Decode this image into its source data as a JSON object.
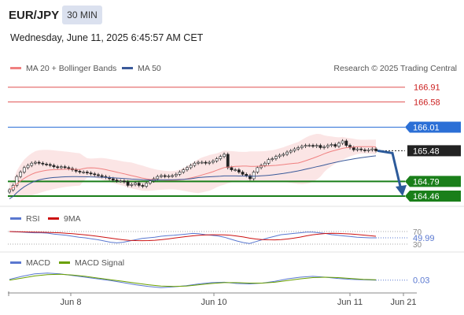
{
  "header": {
    "pair": "EUR/JPY",
    "timeframe": "30 MIN",
    "datetime": "Wednesday, June 11, 2025 6:45:57 AM CET"
  },
  "legend": {
    "ma20_label": "MA 20 + Bollinger Bands",
    "ma50_label": "MA 50",
    "credit": "Research © 2025 Trading Central",
    "rsi_label": "RSI",
    "rsi_ma_label": "9MA",
    "macd_label": "MACD",
    "macd_signal_label": "MACD Signal"
  },
  "colors": {
    "ma20": "#f08080",
    "ma50": "#3b5a9a",
    "resistance": "#e05050",
    "support": "#1a7f1a",
    "pivot": "#2b6fd6",
    "rsi": "#5a78d0",
    "rsi_ma": "#cc1111",
    "macd": "#5a78d0",
    "macd_signal": "#6aa000",
    "arrow": "#2c5a9a"
  },
  "chart_data": [
    {
      "type": "candlestick",
      "x_labels": [
        "Jun 8",
        "Jun 10",
        "Jun 11",
        "Jun 21"
      ],
      "ylim": [
        164.3,
        167.1
      ],
      "levels": [
        {
          "value": 166.91,
          "label": "166.91",
          "kind": "resistance"
        },
        {
          "value": 166.58,
          "label": "166.58",
          "kind": "resistance"
        },
        {
          "value": 166.01,
          "label": "166.01",
          "kind": "pivot"
        },
        {
          "value": 164.79,
          "label": "164.79",
          "kind": "support"
        },
        {
          "value": 164.46,
          "label": "164.46",
          "kind": "support"
        }
      ],
      "last_price": {
        "value": 165.48,
        "label": "165.48"
      },
      "close": [
        164.6,
        164.7,
        164.9,
        165.0,
        165.1,
        165.15,
        165.2,
        165.22,
        165.2,
        165.18,
        165.17,
        165.15,
        165.12,
        165.1,
        165.12,
        165.1,
        165.08,
        165.05,
        165.02,
        165.0,
        165.0,
        164.98,
        164.96,
        164.94,
        164.92,
        164.9,
        164.88,
        164.85,
        164.82,
        164.8,
        164.8,
        164.78,
        164.7,
        164.72,
        164.75,
        164.7,
        164.68,
        164.75,
        164.8,
        164.85,
        164.9,
        164.92,
        164.9,
        164.91,
        164.92,
        164.95,
        165.0,
        165.05,
        165.1,
        165.15,
        165.2,
        165.22,
        165.22,
        165.2,
        165.22,
        165.25,
        165.3,
        165.35,
        165.4,
        165.1,
        165.05,
        165.05,
        165.0,
        164.95,
        164.92,
        164.85,
        165.0,
        165.1,
        165.15,
        165.2,
        165.28,
        165.3,
        165.35,
        165.38,
        165.4,
        165.45,
        165.48,
        165.52,
        165.55,
        165.58,
        165.6,
        165.6,
        165.58,
        165.6,
        165.55,
        165.57,
        165.6,
        165.62,
        165.58,
        165.65,
        165.7,
        165.6,
        165.55,
        165.5,
        165.52,
        165.5,
        165.48,
        165.5,
        165.52,
        165.48
      ],
      "ma20_approx": [
        164.4,
        164.7,
        164.9,
        165.0,
        165.05,
        165.0,
        164.95,
        164.9,
        164.85,
        164.9,
        165.0,
        165.1,
        165.2,
        165.3,
        165.45,
        165.5,
        165.55,
        165.5,
        165.5
      ],
      "ma50_approx": [
        164.4,
        164.55,
        164.7,
        164.8,
        164.85,
        164.9,
        164.95,
        165.0,
        165.05,
        165.1,
        165.15,
        165.25,
        165.3,
        165.38,
        165.42
      ]
    },
    {
      "type": "line",
      "name": "RSI",
      "levels": [
        70,
        30
      ],
      "last_value": {
        "value": 49.99,
        "label": "49.99"
      },
      "level_labels": [
        "70",
        "30"
      ],
      "values": [
        70,
        69,
        68,
        67,
        66,
        66,
        65,
        62,
        60,
        58,
        55,
        52,
        50,
        47,
        44,
        40,
        36,
        34,
        36,
        40,
        44,
        48,
        50,
        52,
        55,
        57,
        58,
        60,
        62,
        64,
        63,
        60,
        58,
        56,
        52,
        46,
        40,
        35,
        32,
        38,
        44,
        50,
        55,
        60,
        62,
        64,
        66,
        68,
        68,
        66,
        64,
        60,
        58,
        56,
        54,
        52,
        51,
        50,
        50
      ]
    },
    {
      "type": "line",
      "name": "MACD",
      "last_value": {
        "value": 0.03,
        "label": "0.03"
      },
      "values": [
        0.05,
        0.12,
        0.18,
        0.2,
        0.18,
        0.14,
        0.1,
        0.06,
        0.02,
        -0.03,
        -0.08,
        -0.12,
        -0.15,
        -0.13,
        -0.1,
        -0.06,
        -0.03,
        -0.02,
        -0.05,
        -0.06,
        -0.04,
        0.0,
        0.06,
        0.1,
        0.12,
        0.1,
        0.07,
        0.05,
        0.04,
        0.03
      ],
      "signal": [
        0.03,
        0.08,
        0.13,
        0.16,
        0.17,
        0.15,
        0.12,
        0.08,
        0.04,
        0.0,
        -0.04,
        -0.08,
        -0.11,
        -0.12,
        -0.11,
        -0.08,
        -0.05,
        -0.03,
        -0.03,
        -0.04,
        -0.04,
        -0.02,
        0.02,
        0.06,
        0.09,
        0.1,
        0.09,
        0.07,
        0.05,
        0.04
      ]
    }
  ]
}
